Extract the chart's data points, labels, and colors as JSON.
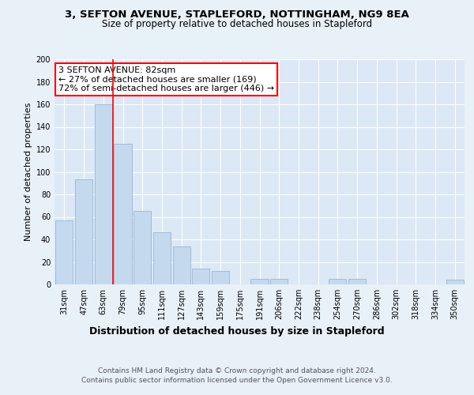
{
  "title1": "3, SEFTON AVENUE, STAPLEFORD, NOTTINGHAM, NG9 8EA",
  "title2": "Size of property relative to detached houses in Stapleford",
  "xlabel": "Distribution of detached houses by size in Stapleford",
  "ylabel": "Number of detached properties",
  "categories": [
    "31sqm",
    "47sqm",
    "63sqm",
    "79sqm",
    "95sqm",
    "111sqm",
    "127sqm",
    "143sqm",
    "159sqm",
    "175sqm",
    "191sqm",
    "206sqm",
    "222sqm",
    "238sqm",
    "254sqm",
    "270sqm",
    "286sqm",
    "302sqm",
    "318sqm",
    "334sqm",
    "350sqm"
  ],
  "values": [
    57,
    93,
    160,
    125,
    65,
    46,
    34,
    14,
    12,
    0,
    5,
    5,
    0,
    0,
    5,
    5,
    0,
    0,
    0,
    0,
    4
  ],
  "bar_color": "#c5d9ee",
  "bar_edge_color": "#8aafd4",
  "annotation_text": "3 SEFTON AVENUE: 82sqm\n← 27% of detached houses are smaller (169)\n72% of semi-detached houses are larger (446) →",
  "annotation_box_color": "white",
  "annotation_box_edge": "red",
  "vline_color": "red",
  "vline_x": 2.5,
  "ylim": [
    0,
    200
  ],
  "yticks": [
    0,
    20,
    40,
    60,
    80,
    100,
    120,
    140,
    160,
    180,
    200
  ],
  "bg_color": "#e8f0f8",
  "plot_bg_color": "#dce8f5",
  "grid_color": "#ffffff",
  "footer_text": "Contains HM Land Registry data © Crown copyright and database right 2024.\nContains public sector information licensed under the Open Government Licence v3.0.",
  "title1_fontsize": 9.5,
  "title2_fontsize": 8.5,
  "xlabel_fontsize": 9,
  "ylabel_fontsize": 8,
  "tick_fontsize": 7,
  "annotation_fontsize": 8,
  "footer_fontsize": 6.5
}
